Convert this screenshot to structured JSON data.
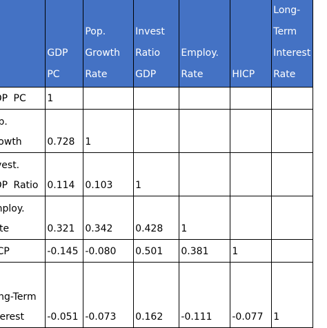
{
  "table": {
    "columns": [
      "GDP PC",
      "Pop. Growth Rate",
      "Invest Ratio GDP",
      "Employ. Rate",
      "HICP",
      "Long-Term Interest Rate"
    ],
    "rows": [
      {
        "label": "GDP PC",
        "values": [
          "1",
          "",
          "",
          "",
          "",
          ""
        ]
      },
      {
        "label": "Pop. Growth",
        "values": [
          "0.728",
          "1",
          "",
          "",
          "",
          ""
        ]
      },
      {
        "label": "Invest. GDP Ratio",
        "values": [
          "0.114",
          "0.103",
          "1",
          "",
          "",
          ""
        ]
      },
      {
        "label": "Employ. Rate",
        "values": [
          "0.321",
          "0.342",
          "0.428",
          "1",
          "",
          ""
        ]
      },
      {
        "label": "HICP",
        "values": [
          "-0.145",
          "-0.080",
          "0.501",
          "0.381",
          "1",
          ""
        ]
      },
      {
        "label": "Long-Term Interest",
        "values": [
          "-0.051",
          "-0.073",
          "0.162",
          "-0.111",
          "-0.077",
          "1"
        ]
      }
    ]
  }
}
